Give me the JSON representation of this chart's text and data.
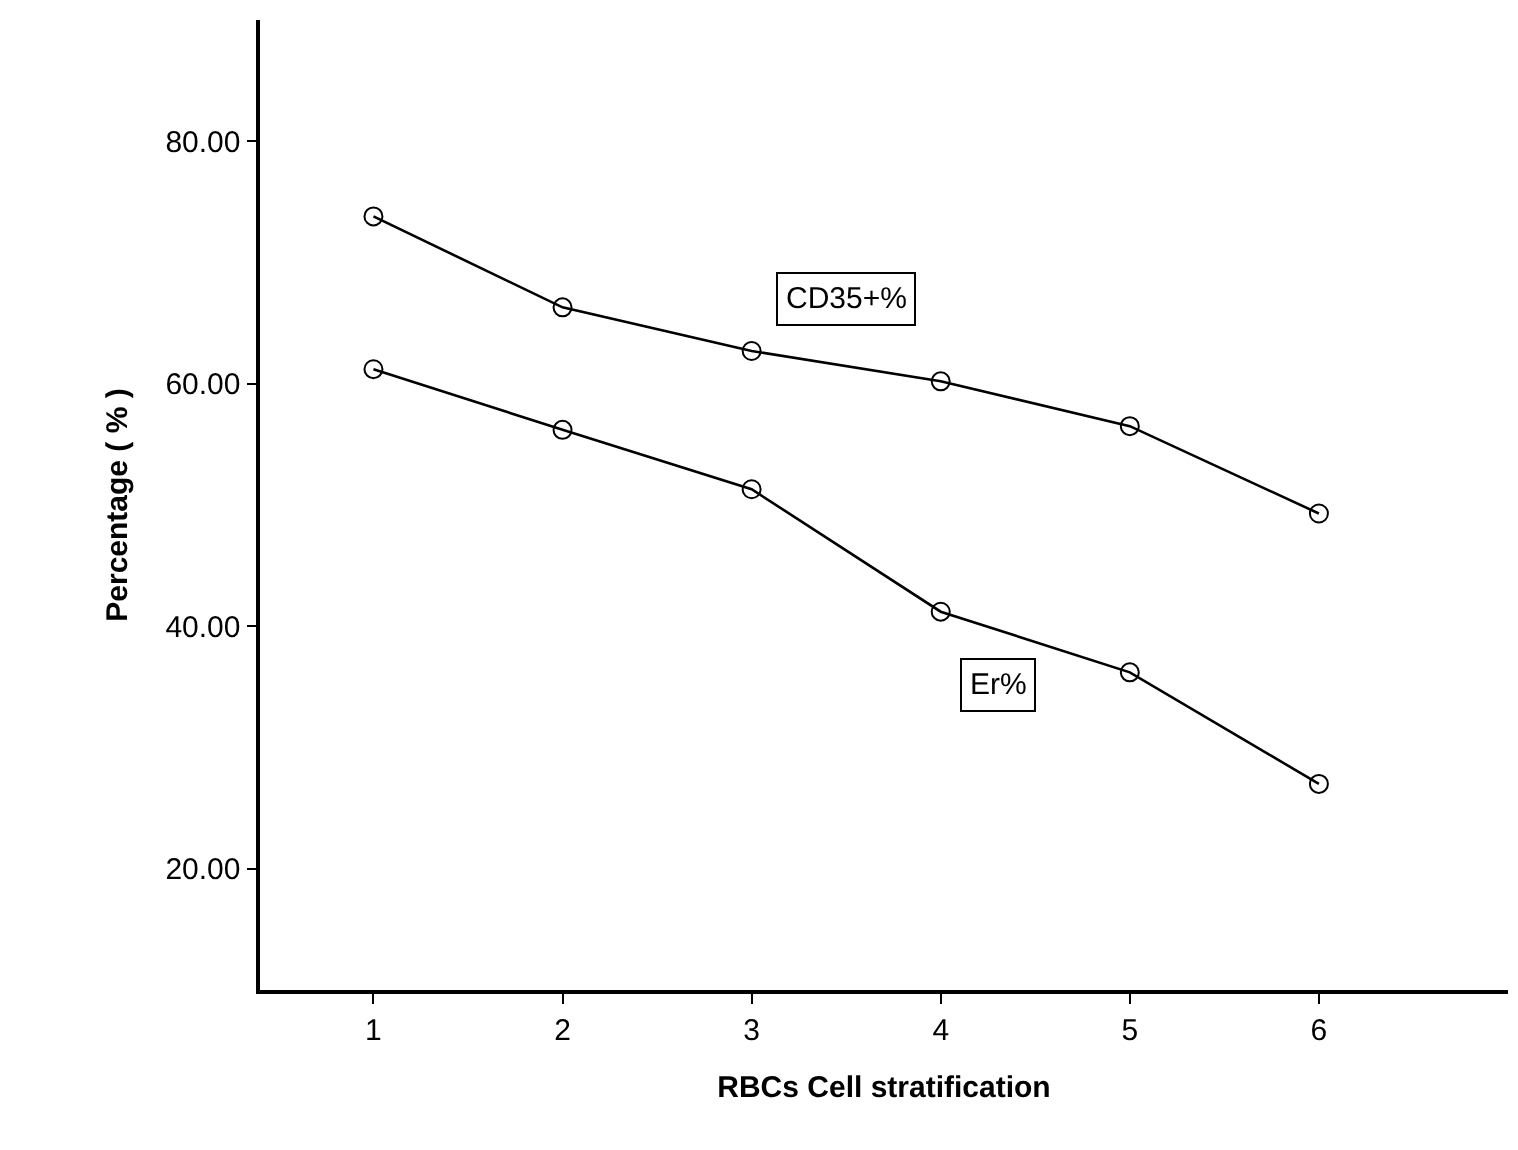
{
  "chart_data": {
    "type": "line",
    "xlabel": "RBCs Cell stratification",
    "ylabel": "Percentage ( % )",
    "x": [
      1,
      2,
      3,
      4,
      5,
      6
    ],
    "series": [
      {
        "name": "CD35+%",
        "color": "#000000",
        "values": [
          73.8,
          66.3,
          62.7,
          60.2,
          56.5,
          49.3
        ]
      },
      {
        "name": "Er%",
        "color": "#000000",
        "values": [
          61.2,
          56.2,
          51.3,
          41.2,
          36.2,
          27.0
        ]
      }
    ],
    "xlim": [
      0.4,
      7
    ],
    "xticks": [
      1,
      2,
      3,
      4,
      5,
      6
    ],
    "ylim": [
      10,
      90
    ],
    "yticks": [
      {
        "value": 20,
        "label": "20.00"
      },
      {
        "value": 40,
        "label": "40.00"
      },
      {
        "value": 60,
        "label": "60.00"
      },
      {
        "value": 80,
        "label": "80.00"
      }
    ],
    "marker": "circle",
    "line_style": "solid"
  }
}
